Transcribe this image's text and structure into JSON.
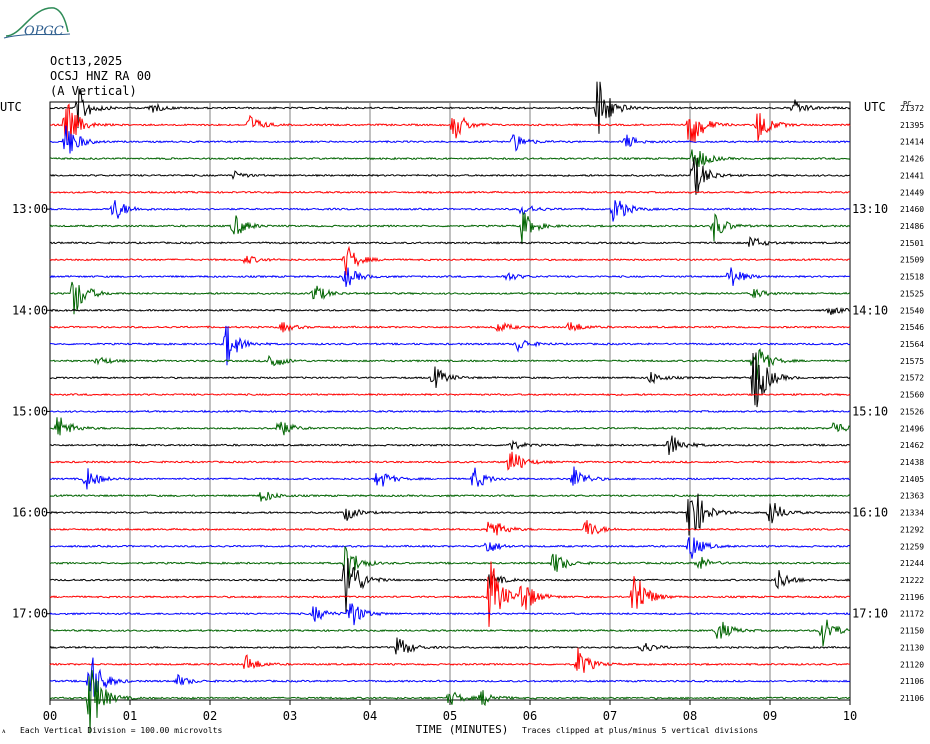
{
  "logo": {
    "text": "OPGC",
    "color": "#2f5f8f",
    "accent": "#2e8b57"
  },
  "header": {
    "date": "Oct13,2025",
    "station": "OCSJ HNZ RA 00",
    "component": "(A Vertical)"
  },
  "left_axis": {
    "label": "UTC"
  },
  "right_axis": {
    "label": "UTC",
    "tag": "PC"
  },
  "footer": {
    "division_note": "Each Vertical Division = 100.00 microvolts",
    "clip_note": "Traces clipped at plus/minus 5 vertical divisions",
    "corner_mark": "ᴀ"
  },
  "chart_data": {
    "type": "line",
    "xlabel": "TIME (MINUTES)",
    "x_ticks": [
      "00",
      "01",
      "02",
      "03",
      "04",
      "05",
      "06",
      "07",
      "08",
      "09",
      "10"
    ],
    "xlim": [
      0,
      10
    ],
    "grid": true,
    "trace_colors": [
      "#000000",
      "#ff0000",
      "#0000ff",
      "#006400"
    ],
    "left_time_labels": [
      {
        "row": 6,
        "label": "13:00"
      },
      {
        "row": 12,
        "label": "14:00"
      },
      {
        "row": 18,
        "label": "15:00"
      },
      {
        "row": 24,
        "label": "16:00"
      },
      {
        "row": 30,
        "label": "17:00"
      }
    ],
    "right_time_labels": [
      {
        "row": 6,
        "label": "13:10"
      },
      {
        "row": 12,
        "label": "14:10"
      },
      {
        "row": 18,
        "label": "15:10"
      },
      {
        "row": 24,
        "label": "16:10"
      },
      {
        "row": 30,
        "label": "17:10"
      }
    ],
    "right_counts": [
      "21372",
      "21395",
      "21414",
      "21426",
      "21441",
      "21449",
      "21460",
      "21486",
      "21501",
      "21509",
      "21518",
      "21525",
      "21540",
      "21546",
      "21564",
      "21575",
      "21572",
      "21560",
      "21526",
      "21496",
      "21462",
      "21438",
      "21405",
      "21363",
      "21334",
      "21292",
      "21259",
      "21244",
      "21222",
      "21196",
      "21172",
      "21150",
      "21130",
      "21120",
      "21106",
      "21106"
    ],
    "events": [
      {
        "row": 0,
        "t": 0.35,
        "a": 2.6
      },
      {
        "row": 0,
        "t": 6.85,
        "a": 4.5
      },
      {
        "row": 0,
        "t": 9.3,
        "a": 1.0
      },
      {
        "row": 0,
        "t": 1.25,
        "a": 0.7
      },
      {
        "row": 1,
        "t": 0.2,
        "a": 3.5
      },
      {
        "row": 1,
        "t": 2.5,
        "a": 1.2
      },
      {
        "row": 1,
        "t": 5.05,
        "a": 2.0
      },
      {
        "row": 1,
        "t": 8.0,
        "a": 3.5
      },
      {
        "row": 1,
        "t": 8.85,
        "a": 2.2
      },
      {
        "row": 2,
        "t": 0.2,
        "a": 2.5
      },
      {
        "row": 2,
        "t": 5.8,
        "a": 1.2
      },
      {
        "row": 2,
        "t": 7.2,
        "a": 0.9
      },
      {
        "row": 3,
        "t": 8.05,
        "a": 2.0
      },
      {
        "row": 4,
        "t": 8.05,
        "a": 3.0
      },
      {
        "row": 4,
        "t": 2.3,
        "a": 0.5
      },
      {
        "row": 6,
        "t": 0.8,
        "a": 1.6
      },
      {
        "row": 6,
        "t": 7.05,
        "a": 2.0
      },
      {
        "row": 6,
        "t": 5.9,
        "a": 0.8
      },
      {
        "row": 7,
        "t": 2.3,
        "a": 1.6
      },
      {
        "row": 7,
        "t": 5.9,
        "a": 2.0
      },
      {
        "row": 7,
        "t": 8.3,
        "a": 1.8
      },
      {
        "row": 8,
        "t": 8.75,
        "a": 0.9
      },
      {
        "row": 9,
        "t": 3.7,
        "a": 2.0
      },
      {
        "row": 9,
        "t": 2.45,
        "a": 0.6
      },
      {
        "row": 10,
        "t": 3.7,
        "a": 1.4
      },
      {
        "row": 10,
        "t": 8.5,
        "a": 1.5
      },
      {
        "row": 10,
        "t": 5.7,
        "a": 0.6
      },
      {
        "row": 11,
        "t": 0.3,
        "a": 3.0
      },
      {
        "row": 11,
        "t": 3.3,
        "a": 1.3
      },
      {
        "row": 11,
        "t": 8.8,
        "a": 0.6
      },
      {
        "row": 12,
        "t": 9.75,
        "a": 0.6
      },
      {
        "row": 13,
        "t": 5.6,
        "a": 0.7
      },
      {
        "row": 13,
        "t": 6.5,
        "a": 0.8
      },
      {
        "row": 13,
        "t": 2.9,
        "a": 0.6
      },
      {
        "row": 14,
        "t": 2.2,
        "a": 2.8
      },
      {
        "row": 14,
        "t": 5.85,
        "a": 0.9
      },
      {
        "row": 15,
        "t": 2.75,
        "a": 1.2
      },
      {
        "row": 15,
        "t": 8.8,
        "a": 3.0
      },
      {
        "row": 15,
        "t": 0.6,
        "a": 0.6
      },
      {
        "row": 16,
        "t": 4.8,
        "a": 1.5
      },
      {
        "row": 16,
        "t": 7.5,
        "a": 0.8
      },
      {
        "row": 16,
        "t": 8.8,
        "a": 5.0
      },
      {
        "row": 19,
        "t": 0.1,
        "a": 1.8
      },
      {
        "row": 19,
        "t": 2.85,
        "a": 1.4
      },
      {
        "row": 19,
        "t": 9.8,
        "a": 1.0
      },
      {
        "row": 20,
        "t": 7.75,
        "a": 1.6
      },
      {
        "row": 20,
        "t": 5.75,
        "a": 0.7
      },
      {
        "row": 21,
        "t": 5.75,
        "a": 2.0
      },
      {
        "row": 22,
        "t": 0.45,
        "a": 1.5
      },
      {
        "row": 22,
        "t": 4.1,
        "a": 1.4
      },
      {
        "row": 22,
        "t": 5.3,
        "a": 1.5
      },
      {
        "row": 22,
        "t": 6.55,
        "a": 1.6
      },
      {
        "row": 23,
        "t": 2.65,
        "a": 0.9
      },
      {
        "row": 24,
        "t": 8.0,
        "a": 5.0
      },
      {
        "row": 24,
        "t": 9.0,
        "a": 1.8
      },
      {
        "row": 24,
        "t": 3.7,
        "a": 1.0
      },
      {
        "row": 25,
        "t": 5.5,
        "a": 1.8
      },
      {
        "row": 25,
        "t": 6.7,
        "a": 1.4
      },
      {
        "row": 26,
        "t": 5.45,
        "a": 1.1
      },
      {
        "row": 26,
        "t": 8.0,
        "a": 1.8
      },
      {
        "row": 27,
        "t": 3.7,
        "a": 2.6
      },
      {
        "row": 27,
        "t": 6.3,
        "a": 1.5
      },
      {
        "row": 27,
        "t": 8.1,
        "a": 1.0
      },
      {
        "row": 28,
        "t": 3.7,
        "a": 5.0
      },
      {
        "row": 28,
        "t": 9.1,
        "a": 1.4
      },
      {
        "row": 28,
        "t": 5.5,
        "a": 1.0
      },
      {
        "row": 29,
        "t": 5.5,
        "a": 5.0
      },
      {
        "row": 29,
        "t": 5.9,
        "a": 2.5
      },
      {
        "row": 29,
        "t": 7.3,
        "a": 4.0
      },
      {
        "row": 30,
        "t": 3.3,
        "a": 1.1
      },
      {
        "row": 30,
        "t": 3.75,
        "a": 2.0
      },
      {
        "row": 31,
        "t": 8.35,
        "a": 1.6
      },
      {
        "row": 31,
        "t": 9.65,
        "a": 2.4
      },
      {
        "row": 32,
        "t": 4.35,
        "a": 1.6
      },
      {
        "row": 32,
        "t": 7.4,
        "a": 0.8
      },
      {
        "row": 33,
        "t": 2.45,
        "a": 1.2
      },
      {
        "row": 33,
        "t": 6.6,
        "a": 2.0
      },
      {
        "row": 34,
        "t": 0.5,
        "a": 4.0
      },
      {
        "row": 34,
        "t": 1.6,
        "a": 0.7
      },
      {
        "row": 35,
        "t": 0.5,
        "a": 5.0
      },
      {
        "row": 35,
        "t": 5.0,
        "a": 1.0
      },
      {
        "row": 35,
        "t": 5.4,
        "a": 1.0
      }
    ]
  }
}
